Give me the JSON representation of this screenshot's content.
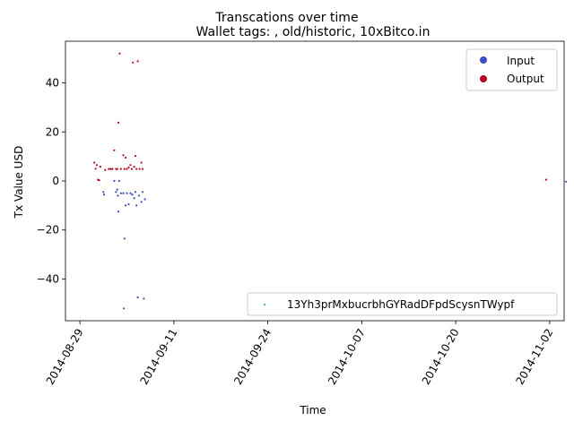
{
  "chart_data": {
    "type": "scatter",
    "title": "Transcations over time",
    "subtitle": "Wallet tags: , old/historic, 10xBitco.in",
    "xlabel": "Time",
    "ylabel": "Tx Value USD",
    "x_range": [
      "2014-08-27",
      "2014-11-04"
    ],
    "ylim": [
      -57,
      57
    ],
    "x_ticks": [
      "2014-08-29",
      "2014-09-11",
      "2014-09-24",
      "2014-10-07",
      "2014-10-20",
      "2014-11-02"
    ],
    "y_ticks": [
      -40,
      -20,
      0,
      20,
      40
    ],
    "grid": false,
    "legend_series": {
      "placement": "top-right",
      "entries": [
        {
          "label": "Input",
          "color": "#3b4cc0"
        },
        {
          "label": "Output",
          "color": "#b40426"
        }
      ]
    },
    "legend_wallet": {
      "placement": "bottom-right",
      "label": "13Yh3prMxbucrbhGYRadDFpdScysnTWypf",
      "color": "#1f9e89"
    },
    "series": [
      {
        "name": "Output",
        "color": "#b40426",
        "points": [
          {
            "x": "2014-08-31T00:00",
            "y": 7.5
          },
          {
            "x": "2014-08-31T04:00",
            "y": 5.0
          },
          {
            "x": "2014-08-31T08:00",
            "y": 6.5
          },
          {
            "x": "2014-08-31T12:00",
            "y": 0.5
          },
          {
            "x": "2014-08-31T16:00",
            "y": 0.3
          },
          {
            "x": "2014-08-31T20:00",
            "y": 5.8
          },
          {
            "x": "2014-09-01T12:00",
            "y": 4.5
          },
          {
            "x": "2014-09-02T00:00",
            "y": 4.9
          },
          {
            "x": "2014-09-02T06:00",
            "y": 4.9
          },
          {
            "x": "2014-09-02T12:00",
            "y": 4.9
          },
          {
            "x": "2014-09-02T18:00",
            "y": 12.5
          },
          {
            "x": "2014-09-03T00:00",
            "y": 4.9
          },
          {
            "x": "2014-09-03T04:00",
            "y": 4.9
          },
          {
            "x": "2014-09-03T08:00",
            "y": 23.8
          },
          {
            "x": "2014-09-03T12:00",
            "y": 52.0
          },
          {
            "x": "2014-09-03T16:00",
            "y": 4.9
          },
          {
            "x": "2014-09-04T00:00",
            "y": 10.5
          },
          {
            "x": "2014-09-04T04:00",
            "y": 4.9
          },
          {
            "x": "2014-09-04T08:00",
            "y": 9.5
          },
          {
            "x": "2014-09-04T12:00",
            "y": 4.9
          },
          {
            "x": "2014-09-04T18:00",
            "y": 5.5
          },
          {
            "x": "2014-09-05T00:00",
            "y": 6.5
          },
          {
            "x": "2014-09-05T04:00",
            "y": 4.9
          },
          {
            "x": "2014-09-05T08:00",
            "y": 48.3
          },
          {
            "x": "2014-09-05T12:00",
            "y": 5.8
          },
          {
            "x": "2014-09-05T16:00",
            "y": 10.2
          },
          {
            "x": "2014-09-05T20:00",
            "y": 4.9
          },
          {
            "x": "2014-09-06T00:00",
            "y": 48.8
          },
          {
            "x": "2014-09-06T06:00",
            "y": 4.9
          },
          {
            "x": "2014-09-06T12:00",
            "y": 7.5
          },
          {
            "x": "2014-09-06T16:00",
            "y": 4.9
          },
          {
            "x": "2014-11-01T12:00",
            "y": 0.5
          }
        ]
      },
      {
        "name": "Input",
        "color": "#3b4cc0",
        "points": [
          {
            "x": "2014-09-01T06:00",
            "y": -4.5
          },
          {
            "x": "2014-09-01T08:00",
            "y": -5.5
          },
          {
            "x": "2014-09-02T18:00",
            "y": 0.0
          },
          {
            "x": "2014-09-03T00:00",
            "y": -4.5
          },
          {
            "x": "2014-09-03T04:00",
            "y": -3.5
          },
          {
            "x": "2014-09-03T06:00",
            "y": -6.0
          },
          {
            "x": "2014-09-03T08:00",
            "y": -12.5
          },
          {
            "x": "2014-09-03T10:00",
            "y": 0.0
          },
          {
            "x": "2014-09-03T16:00",
            "y": -5.0
          },
          {
            "x": "2014-09-04T00:00",
            "y": -5.0
          },
          {
            "x": "2014-09-04T02:00",
            "y": -52.0
          },
          {
            "x": "2014-09-04T04:00",
            "y": -23.5
          },
          {
            "x": "2014-09-04T08:00",
            "y": -10.0
          },
          {
            "x": "2014-09-04T12:00",
            "y": -5.0
          },
          {
            "x": "2014-09-04T18:00",
            "y": -9.5
          },
          {
            "x": "2014-09-05T00:00",
            "y": -5.0
          },
          {
            "x": "2014-09-05T06:00",
            "y": -5.5
          },
          {
            "x": "2014-09-05T12:00",
            "y": -7.0
          },
          {
            "x": "2014-09-05T16:00",
            "y": -4.5
          },
          {
            "x": "2014-09-05T20:00",
            "y": -10.0
          },
          {
            "x": "2014-09-06T00:00",
            "y": -47.5
          },
          {
            "x": "2014-09-06T04:00",
            "y": -6.0
          },
          {
            "x": "2014-09-06T12:00",
            "y": -8.5
          },
          {
            "x": "2014-09-06T16:00",
            "y": -4.5
          },
          {
            "x": "2014-09-06T20:00",
            "y": -48.0
          },
          {
            "x": "2014-09-07T00:00",
            "y": -7.5
          },
          {
            "x": "2014-11-04T06:00",
            "y": -0.3
          }
        ]
      }
    ]
  }
}
